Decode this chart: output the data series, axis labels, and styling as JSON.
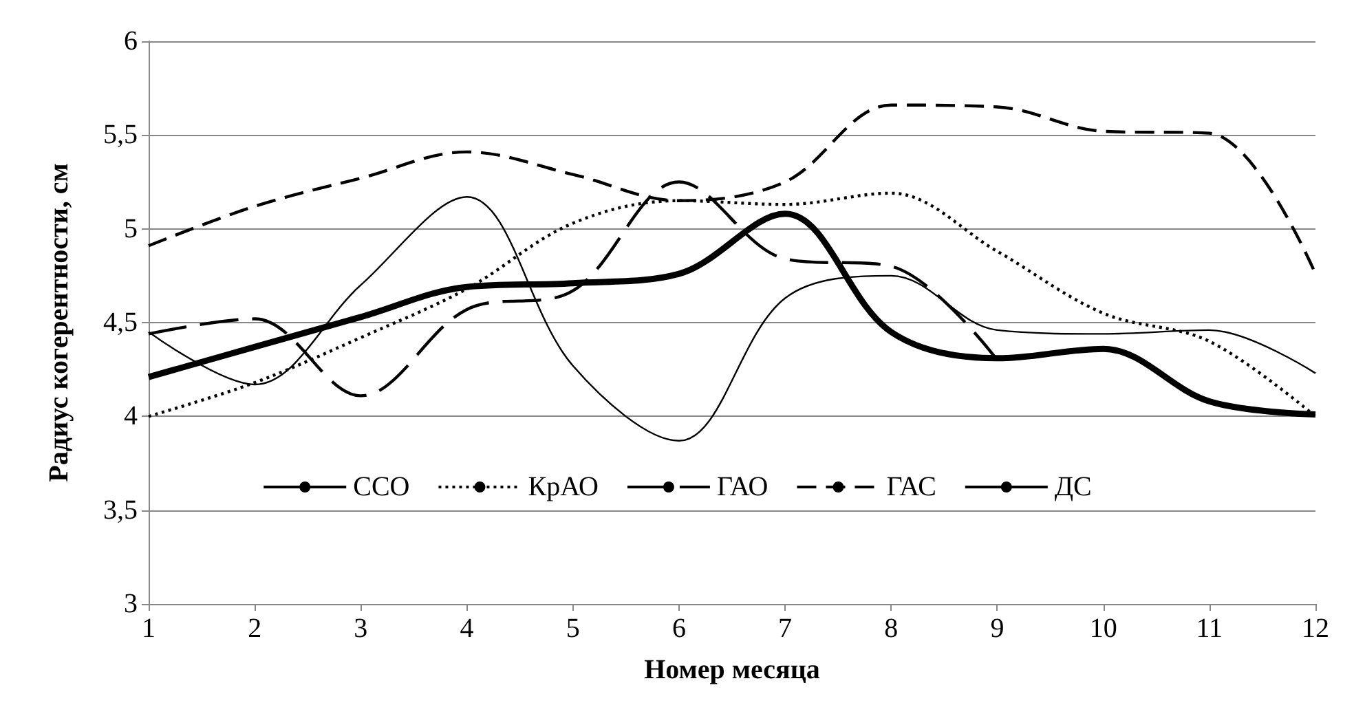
{
  "chart_data": {
    "type": "line",
    "xlabel": "Номер месяца",
    "ylabel": "Радиус когерентности, см",
    "x": [
      1,
      2,
      3,
      4,
      5,
      6,
      7,
      8,
      9,
      10,
      11,
      12
    ],
    "series": [
      {
        "name": "ССО",
        "color": "#000000",
        "line_style": "solid",
        "values": [
          4.21,
          4.37,
          4.53,
          4.69,
          4.71,
          4.76,
          5.08,
          4.45,
          4.31,
          4.36,
          4.08,
          4.01
        ]
      },
      {
        "name": "КрАО",
        "color": "#000000",
        "line_style": "dotted",
        "values": [
          4.0,
          4.18,
          4.42,
          4.68,
          5.03,
          5.15,
          5.13,
          5.19,
          4.88,
          4.55,
          4.4,
          4.0
        ]
      },
      {
        "name": "ГАО",
        "color": "#000000",
        "line_style": "dashed",
        "values": [
          4.44,
          4.52,
          4.11,
          4.57,
          4.67,
          5.25,
          4.84,
          4.8,
          4.3,
          null,
          null,
          null
        ]
      },
      {
        "name": "ГАС",
        "color": "#000000",
        "line_style": "dashed",
        "values": [
          4.91,
          5.12,
          5.27,
          5.41,
          5.29,
          5.15,
          5.25,
          5.66,
          5.65,
          5.52,
          5.51,
          4.76
        ]
      },
      {
        "name": "ДС",
        "color": "#000000",
        "line_style": "solid",
        "values": [
          4.45,
          4.17,
          4.7,
          5.17,
          4.27,
          3.87,
          4.63,
          4.75,
          4.46,
          4.44,
          4.46,
          4.23
        ]
      }
    ],
    "xlim": [
      1,
      12
    ],
    "xticks": [
      1,
      2,
      3,
      4,
      5,
      6,
      7,
      8,
      9,
      10,
      11,
      12
    ],
    "ylim": [
      3,
      6
    ],
    "yticks": [
      3,
      {
        "value": 3.5,
        "label": "3,5"
      },
      4,
      {
        "value": 4.5,
        "label": "4,5"
      },
      5,
      {
        "value": 5.5,
        "label": "5,5"
      },
      6
    ],
    "grid": "y",
    "legend": "bottom",
    "marker": "none"
  }
}
